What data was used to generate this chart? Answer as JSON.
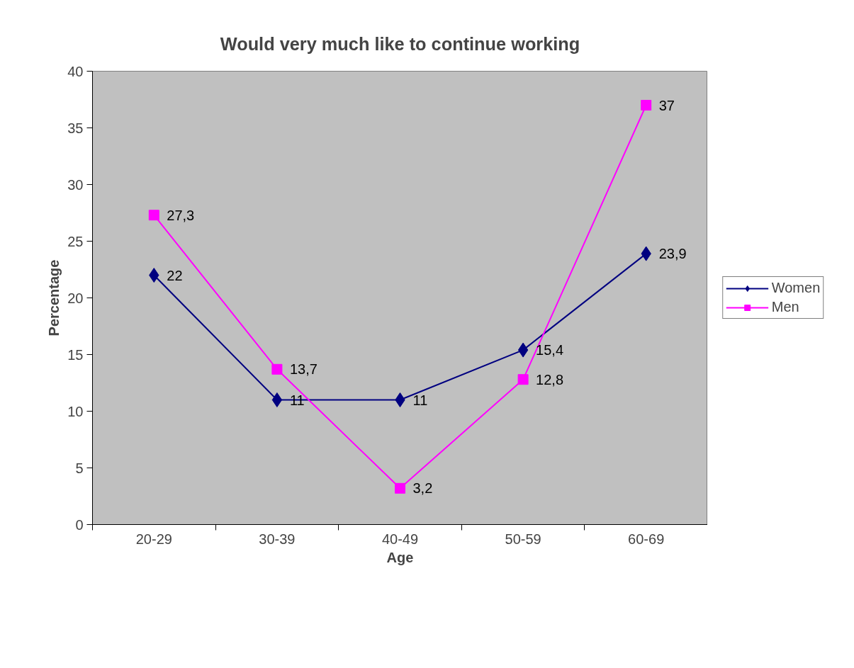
{
  "chart_data": {
    "type": "line",
    "title": "Would very much like to continue working",
    "xlabel": "Age",
    "ylabel": "Percentage",
    "categories": [
      "20-29",
      "30-39",
      "40-49",
      "50-59",
      "60-69"
    ],
    "series": [
      {
        "name": "Women",
        "color": "#000080",
        "marker": "diamond",
        "values": [
          22,
          11,
          11,
          15.4,
          23.9
        ],
        "value_labels": [
          "22",
          "11",
          "11",
          "15,4",
          "23,9"
        ]
      },
      {
        "name": "Men",
        "color": "#ff00ff",
        "marker": "square",
        "values": [
          27.3,
          13.7,
          3.2,
          12.8,
          37
        ],
        "value_labels": [
          "27,3",
          "13,7",
          "3,2",
          "12,8",
          "37"
        ]
      }
    ],
    "ylim": [
      0,
      40
    ],
    "yticks": [
      0,
      5,
      10,
      15,
      20,
      25,
      30,
      35,
      40
    ],
    "grid": false,
    "legend": "right",
    "line_style": "solid"
  }
}
